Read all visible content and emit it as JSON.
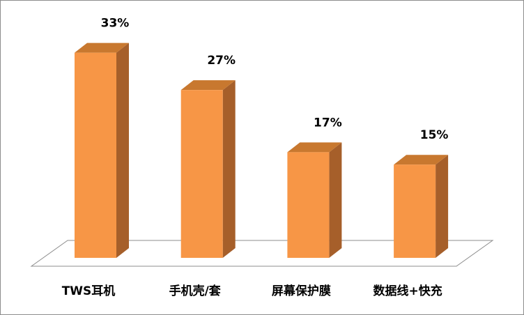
{
  "chart_data": {
    "type": "bar3d",
    "categories": [
      "TWS耳机",
      "手机壳/套",
      "屏幕保护膜",
      "数据线+快充"
    ],
    "values": [
      33,
      27,
      17,
      15
    ],
    "value_labels": [
      "33%",
      "27%",
      "17%",
      "15%"
    ],
    "color": "#f79646"
  }
}
